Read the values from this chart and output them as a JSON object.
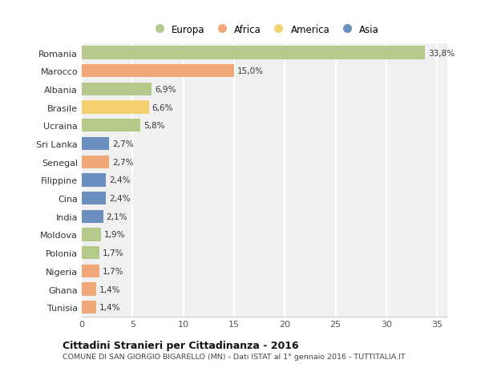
{
  "countries": [
    "Romania",
    "Marocco",
    "Albania",
    "Brasile",
    "Ucraina",
    "Sri Lanka",
    "Senegal",
    "Filippine",
    "Cina",
    "India",
    "Moldova",
    "Polonia",
    "Nigeria",
    "Ghana",
    "Tunisia"
  ],
  "values": [
    33.8,
    15.0,
    6.9,
    6.6,
    5.8,
    2.7,
    2.7,
    2.4,
    2.4,
    2.1,
    1.9,
    1.7,
    1.7,
    1.4,
    1.4
  ],
  "labels": [
    "33,8%",
    "15,0%",
    "6,9%",
    "6,6%",
    "5,8%",
    "2,7%",
    "2,7%",
    "2,4%",
    "2,4%",
    "2,1%",
    "1,9%",
    "1,7%",
    "1,7%",
    "1,4%",
    "1,4%"
  ],
  "continents": [
    "Europa",
    "Africa",
    "Europa",
    "America",
    "Europa",
    "Asia",
    "Africa",
    "Asia",
    "Asia",
    "Asia",
    "Europa",
    "Europa",
    "Africa",
    "Africa",
    "Africa"
  ],
  "colors": {
    "Europa": "#b5c98a",
    "Africa": "#f0a878",
    "America": "#f5d070",
    "Asia": "#6b8fbf"
  },
  "legend_order": [
    "Europa",
    "Africa",
    "America",
    "Asia"
  ],
  "xlim": [
    0,
    36
  ],
  "xticks": [
    0,
    5,
    10,
    15,
    20,
    25,
    30,
    35
  ],
  "title": "Cittadini Stranieri per Cittadinanza - 2016",
  "subtitle": "COMUNE DI SAN GIORGIO BIGARELLO (MN) - Dati ISTAT al 1° gennaio 2016 - TUTTITALIA.IT",
  "fig_bg_color": "#ffffff",
  "plot_bg_color": "#f0f0f0",
  "grid_color": "#ffffff",
  "bar_height": 0.72,
  "label_fontsize": 7.5,
  "tick_fontsize": 8.0,
  "ytick_fontsize": 8.0
}
